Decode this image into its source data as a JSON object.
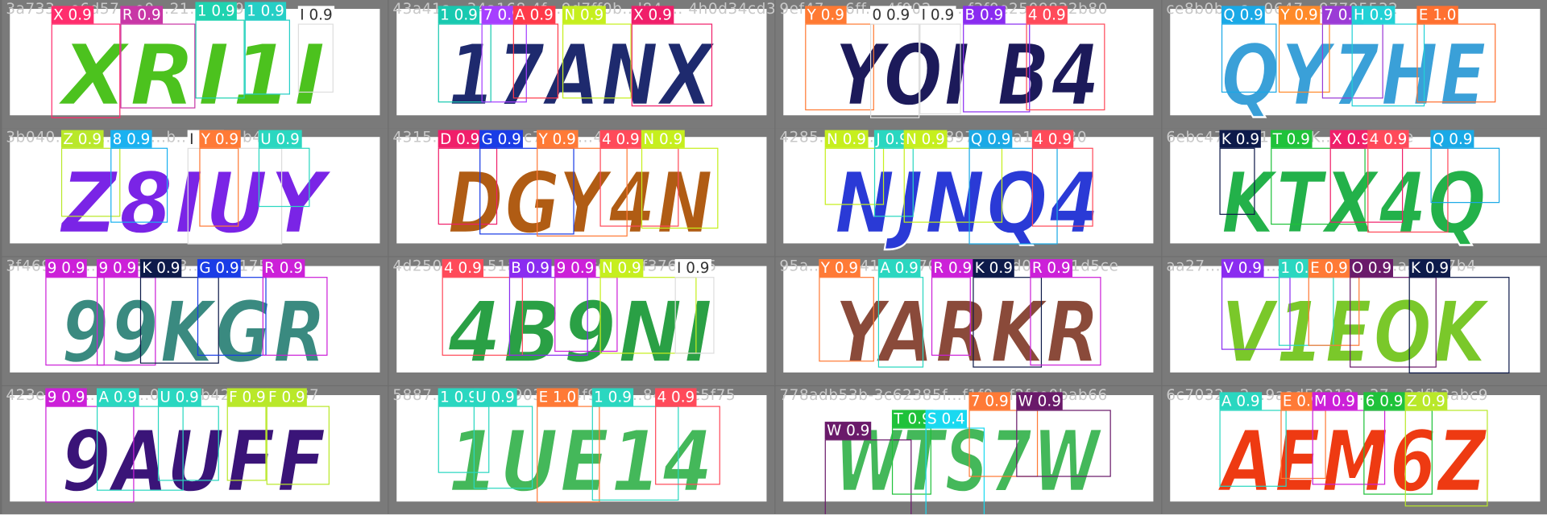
{
  "colors": {
    "background": "#6e6e6e",
    "tile_border": "#7a7a7a",
    "tile_fill": "#ffffff",
    "filename_text": "#c8c8c8"
  },
  "tiles": [
    {
      "filename": "3a733…e6d57…e0…21…0769bca4",
      "captcha": "XRI1I",
      "glyph_color": "#4cc21e",
      "labels": [
        {
          "ch": "X",
          "score": "0.9",
          "color": "#ff2d6d",
          "text_color": "#ffffff"
        },
        {
          "ch": "R",
          "score": "0.9",
          "color": "#c837a6",
          "text_color": "#ffffff"
        },
        {
          "ch": "1",
          "score": "0.9",
          "color": "#1fd3b0",
          "text_color": "#ffffff"
        },
        {
          "ch": "1",
          "score": "0.9",
          "color": "#26cfc6",
          "text_color": "#ffffff"
        },
        {
          "ch": "I",
          "score": "0.9",
          "color": "#ffffff",
          "text_color": "#333333"
        }
      ]
    },
    {
      "filename": "43a41a...34a168 4f...9d7ff0b...l84 ... 4h0d34cd3d926",
      "captcha": "17ANX",
      "glyph_color": "#1e2a6e",
      "labels": [
        {
          "ch": "1",
          "score": "0.9",
          "color": "#19c9b0",
          "text_color": "#ffffff"
        },
        {
          "ch": "7",
          "score": "0.9",
          "color": "#a63fff",
          "text_color": "#ffffff"
        },
        {
          "ch": "A",
          "score": "0.9",
          "color": "#ff3a4a",
          "text_color": "#ffffff"
        },
        {
          "ch": "N",
          "score": "0.9",
          "color": "#c6ef1e",
          "text_color": "#ffffff"
        },
        {
          "ch": "X",
          "score": "0.9",
          "color": "#f01f6a",
          "text_color": "#ffffff"
        }
      ]
    },
    {
      "filename": "9ef47... 6ff... 4f002... ...f3f0e2509832b80",
      "captcha": "YOI B4",
      "glyph_color": "#1c1a5a",
      "labels": [
        {
          "ch": "Y",
          "score": "0.9",
          "color": "#ff7a33",
          "text_color": "#ffffff"
        },
        {
          "ch": "0",
          "score": "0.9",
          "color": "#ffffff",
          "text_color": "#333333"
        },
        {
          "ch": "I",
          "score": "0.9",
          "color": "#ffffff",
          "text_color": "#333333"
        },
        {
          "ch": "B",
          "score": "0.9",
          "color": "#8a2cf0",
          "text_color": "#ffffff"
        },
        {
          "ch": "4",
          "score": "0.9",
          "color": "#ff4a5a",
          "text_color": "#ffffff"
        }
      ]
    },
    {
      "filename": "ce8b0b...c...0647...97795532",
      "captcha": "QY7HE",
      "glyph_color": "#3aa0d8",
      "labels": [
        {
          "ch": "Q",
          "score": "0.9",
          "color": "#1aa9e6",
          "text_color": "#ffffff"
        },
        {
          "ch": "Y",
          "score": "0.9",
          "color": "#ff8a2a",
          "text_color": "#ffffff"
        },
        {
          "ch": "7",
          "score": "0.9",
          "color": "#9b3bd6",
          "text_color": "#ffffff"
        },
        {
          "ch": "H",
          "score": "0.9",
          "color": "#22d1d6",
          "text_color": "#ffffff"
        },
        {
          "ch": "E",
          "score": "1.0",
          "color": "#ff7030",
          "text_color": "#ffffff"
        }
      ]
    },
    {
      "filename": "3b040...57f...1574...b...0ff53ab4a49",
      "captcha": "Z8IUY",
      "glyph_color": "#7a24e6",
      "labels": [
        {
          "ch": "Z",
          "score": "0.9",
          "color": "#b9e82a",
          "text_color": "#ffffff"
        },
        {
          "ch": "8",
          "score": "0.9",
          "color": "#1ab1f0",
          "text_color": "#ffffff"
        },
        {
          "ch": "I",
          "score": "0.9",
          "color": "#ffffff",
          "text_color": "#333333"
        },
        {
          "ch": "U",
          "score": "0.9",
          "color": "#2ad7c0",
          "text_color": "#ffffff"
        },
        {
          "ch": "Y",
          "score": "0.9",
          "color": "#ff7a36",
          "text_color": "#ffffff"
        }
      ]
    },
    {
      "filename": "4315... 4b...g...7c75...d...48a894fd",
      "captcha": "DGY4N",
      "glyph_color": "#b05c14",
      "labels": [
        {
          "ch": "D",
          "score": "0.9",
          "color": "#f01f6a",
          "text_color": "#ffffff"
        },
        {
          "ch": "G",
          "score": "0.9",
          "color": "#1a3ce6",
          "text_color": "#ffffff"
        },
        {
          "ch": "Y",
          "score": "0.9",
          "color": "#ff7a36",
          "text_color": "#ffffff"
        },
        {
          "ch": "4",
          "score": "0.9",
          "color": "#ff4a5a",
          "text_color": "#ffffff"
        },
        {
          "ch": "N",
          "score": "0.9",
          "color": "#c6ef1e",
          "text_color": "#ffffff"
        }
      ]
    },
    {
      "filename": "4285...05e...37...3398970eaaa13e1 30",
      "captcha": "NJNQ4",
      "glyph_color": "#2a3ad6",
      "labels": [
        {
          "ch": "N",
          "score": "0.9",
          "color": "#c6ef1e",
          "text_color": "#ffffff"
        },
        {
          "ch": "J",
          "score": "0.9",
          "color": "#2ad7c0",
          "text_color": "#ffffff"
        },
        {
          "ch": "N",
          "score": "0.9",
          "color": "#c6ef1e",
          "text_color": "#ffffff"
        },
        {
          "ch": "Q",
          "score": "0.9",
          "color": "#1aa9e6",
          "text_color": "#ffffff"
        },
        {
          "ch": "4",
          "score": "0.9",
          "color": "#ff4a5a",
          "text_color": "#ffffff"
        }
      ]
    },
    {
      "filename": "6ebc4784...1...8...K...154c3bde",
      "captcha": "KTX4Q",
      "glyph_color": "#23b14a",
      "labels": [
        {
          "ch": "K",
          "score": "0.9",
          "color": "#0d1a4a",
          "text_color": "#ffffff"
        },
        {
          "ch": "T",
          "score": "0.9",
          "color": "#1fc23a",
          "text_color": "#ffffff"
        },
        {
          "ch": "X",
          "score": "0.9",
          "color": "#f01f6a",
          "text_color": "#ffffff"
        },
        {
          "ch": "4",
          "score": "0.9",
          "color": "#ff4a5a",
          "text_color": "#ffffff"
        },
        {
          "ch": "Q",
          "score": "0.9",
          "color": "#1aa9e6",
          "text_color": "#ffffff"
        }
      ]
    },
    {
      "filename": "3f469bab...7c2ec9af83...641f1755a4",
      "captcha": "99KGR",
      "glyph_color": "#3a8a80",
      "labels": [
        {
          "ch": "9",
          "score": "0.9",
          "color": "#cc20d8",
          "text_color": "#ffffff"
        },
        {
          "ch": "9",
          "score": "0.9",
          "color": "#cc20d8",
          "text_color": "#ffffff"
        },
        {
          "ch": "K",
          "score": "0.9",
          "color": "#0d1a4a",
          "text_color": "#ffffff"
        },
        {
          "ch": "G",
          "score": "0.9",
          "color": "#1a3ce6",
          "text_color": "#ffffff"
        },
        {
          "ch": "R",
          "score": "0.9",
          "color": "#cc20d8",
          "text_color": "#ffffff"
        }
      ]
    },
    {
      "filename": "4d250030...51a5...d...1ffccf296f3763925",
      "captcha": "4B9NI",
      "glyph_color": "#2aa045",
      "labels": [
        {
          "ch": "4",
          "score": "0.9",
          "color": "#ff4a5a",
          "text_color": "#ffffff"
        },
        {
          "ch": "B",
          "score": "0.9",
          "color": "#8a2cf0",
          "text_color": "#ffffff"
        },
        {
          "ch": "9",
          "score": "0.9",
          "color": "#cc20d8",
          "text_color": "#ffffff"
        },
        {
          "ch": "N",
          "score": "0.9",
          "color": "#c6ef1e",
          "text_color": "#ffffff"
        },
        {
          "ch": "I",
          "score": "0.9",
          "color": "#ffffff",
          "text_color": "#333333"
        }
      ]
    },
    {
      "filename": "95a...9...8417c7670ef589ee7d08ee31d5ce",
      "captcha": "YARKR",
      "glyph_color": "#8a4a3a",
      "labels": [
        {
          "ch": "Y",
          "score": "0.9",
          "color": "#ff7a36",
          "text_color": "#ffffff"
        },
        {
          "ch": "A",
          "score": "0.9",
          "color": "#2ad7c0",
          "text_color": "#ffffff"
        },
        {
          "ch": "R",
          "score": "0.9",
          "color": "#cc20d8",
          "text_color": "#ffffff"
        },
        {
          "ch": "K",
          "score": "0.9",
          "color": "#0d1a4a",
          "text_color": "#ffffff"
        },
        {
          "ch": "R",
          "score": "0.9",
          "color": "#cc20d8",
          "text_color": "#ffffff"
        }
      ]
    },
    {
      "filename": "aa27...22...1...2f9166...019...aad457b4",
      "captcha": "V1EOK",
      "glyph_color": "#7ac82a",
      "labels": [
        {
          "ch": "V",
          "score": "0.9",
          "color": "#8a2cf0",
          "text_color": "#ffffff"
        },
        {
          "ch": "1",
          "score": "0.9",
          "color": "#2ad7c0",
          "text_color": "#ffffff"
        },
        {
          "ch": "E",
          "score": "0.9",
          "color": "#ff7a36",
          "text_color": "#ffffff"
        },
        {
          "ch": "O",
          "score": "0.9",
          "color": "#6a1a6a",
          "text_color": "#ffffff"
        },
        {
          "ch": "K",
          "score": "0.9",
          "color": "#0d1a4a",
          "text_color": "#ffffff"
        }
      ]
    },
    {
      "filename": "423e6775...9...s...0...d...b42832de1437",
      "captcha": "9AUFF",
      "glyph_color": "#3a1478",
      "labels": [
        {
          "ch": "9",
          "score": "0.9",
          "color": "#cc20d8",
          "text_color": "#ffffff"
        },
        {
          "ch": "A",
          "score": "0.9",
          "color": "#2ad7c0",
          "text_color": "#ffffff"
        },
        {
          "ch": "U",
          "score": "0.9",
          "color": "#2ad7c0",
          "text_color": "#ffffff"
        },
        {
          "ch": "F",
          "score": "0.9",
          "color": "#b9e82a",
          "text_color": "#ffffff"
        },
        {
          "ch": "F",
          "score": "0.9",
          "color": "#b9e82a",
          "text_color": "#ffffff"
        }
      ]
    },
    {
      "filename": "5887...8...b857903da04f9628...849eac5f75",
      "captcha": "1UE14",
      "glyph_color": "#44b85a",
      "labels": [
        {
          "ch": "1",
          "score": "0.9",
          "color": "#2ad7c0",
          "text_color": "#ffffff"
        },
        {
          "ch": "U",
          "score": "0.9",
          "color": "#2ad7c0",
          "text_color": "#ffffff"
        },
        {
          "ch": "E",
          "score": "1.0",
          "color": "#ff7a36",
          "text_color": "#ffffff"
        },
        {
          "ch": "1",
          "score": "0.9",
          "color": "#2ad7c0",
          "text_color": "#ffffff"
        },
        {
          "ch": "4",
          "score": "0.9",
          "color": "#ff4a5a",
          "text_color": "#ffffff"
        }
      ]
    },
    {
      "filename": "778adb53b-3c62385f...f1f9...f2fce0bab66",
      "captcha": "WTS7W",
      "glyph_color": "#44b85a",
      "labels": [
        {
          "ch": "W",
          "score": "0.9",
          "color": "#6a1a6a",
          "text_color": "#ffffff"
        },
        {
          "ch": "T",
          "score": "0.9",
          "color": "#1fc23a",
          "text_color": "#ffffff"
        },
        {
          "ch": "S",
          "score": "0.4",
          "color": "#1ad9f0",
          "text_color": "#ffffff"
        },
        {
          "ch": "7",
          "score": "0.9",
          "color": "#ff7a36",
          "text_color": "#ffffff"
        },
        {
          "ch": "W",
          "score": "0.9",
          "color": "#6a1a6a",
          "text_color": "#ffffff"
        }
      ]
    },
    {
      "filename": "6c7032...2...9aad59212...37...3dfb3abc9",
      "captcha": "AEM6Z",
      "glyph_color": "#ee3a12",
      "labels": [
        {
          "ch": "A",
          "score": "0.9",
          "color": "#2ad7c0",
          "text_color": "#ffffff"
        },
        {
          "ch": "E",
          "score": "0.9",
          "color": "#ff7a36",
          "text_color": "#ffffff"
        },
        {
          "ch": "M",
          "score": "0.9",
          "color": "#cc20d8",
          "text_color": "#ffffff"
        },
        {
          "ch": "6",
          "score": "0.9",
          "color": "#1fc23a",
          "text_color": "#ffffff"
        },
        {
          "ch": "Z",
          "score": "0.9",
          "color": "#b9e82a",
          "text_color": "#ffffff"
        }
      ]
    }
  ]
}
